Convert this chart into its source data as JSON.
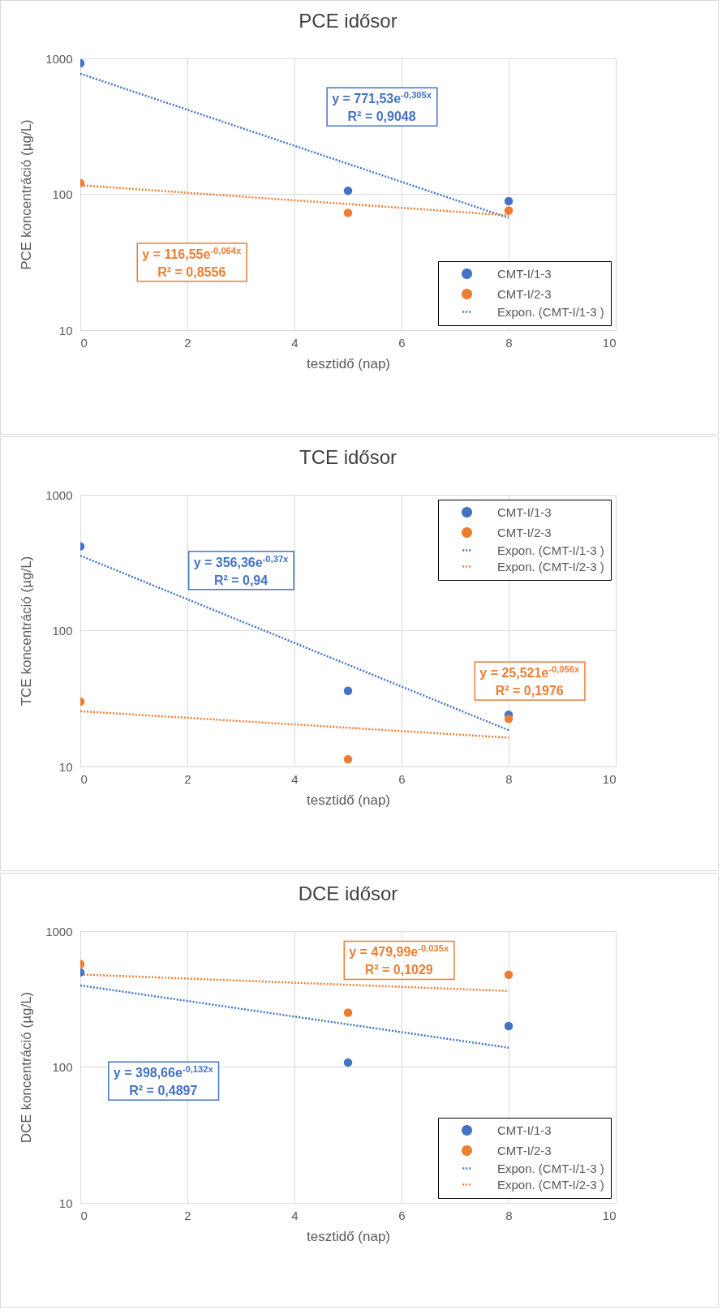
{
  "chart_data": [
    {
      "type": "scatter",
      "title": "PCE idősor",
      "xlabel": "tesztidő (nap)",
      "ylabel": "PCE koncentráció (µg/L)",
      "log": "y",
      "xlim": [
        0,
        10
      ],
      "xticks": [
        0,
        2,
        4,
        6,
        8,
        10
      ],
      "ylim": [
        10,
        1000
      ],
      "yticks": [
        10,
        100,
        1000
      ],
      "grid": true,
      "legend": "bottom right",
      "series": [
        {
          "name": "CMT-I/1-3",
          "marker": "circle",
          "color": "#4472c4",
          "x": [
            0,
            5,
            8
          ],
          "values": [
            920,
            106,
            89
          ]
        },
        {
          "name": "CMT-I/2-3",
          "marker": "circle",
          "color": "#ed7d31",
          "x": [
            0,
            5,
            8
          ],
          "values": [
            121,
            73,
            76
          ]
        },
        {
          "name": "Expon. (CMT-I/1-3 )",
          "type": "line",
          "marker": "none",
          "line_style": "dotted",
          "color": "#4472c4",
          "x": [
            0,
            8
          ],
          "values": [
            771.53,
            67
          ]
        },
        {
          "type": "line",
          "marker": "none",
          "line_style": "dotted",
          "color": "#ed7d31",
          "x": [
            0,
            8
          ],
          "values": [
            116.55,
            69.9
          ]
        }
      ],
      "annotations": [
        "y = 771,53e$^{-0,305x}$\nR² = 0,9048",
        "y = 116,55e$^{-0,064x}$\nR² = 0,8556"
      ]
    },
    {
      "type": "scatter",
      "title": "TCE idősor",
      "xlabel": "tesztidő (nap)",
      "ylabel": "TCE koncentráció (µg/L)",
      "log": "y",
      "xlim": [
        0,
        10
      ],
      "xticks": [
        0,
        2,
        4,
        6,
        8,
        10
      ],
      "ylim": [
        10,
        1000
      ],
      "yticks": [
        10,
        100,
        1000
      ],
      "grid": true,
      "legend": "top right",
      "series": [
        {
          "name": "CMT-I/1-3",
          "marker": "circle",
          "color": "#4472c4",
          "x": [
            0,
            5,
            8
          ],
          "values": [
            417,
            36,
            24
          ]
        },
        {
          "name": "CMT-I/2-3",
          "marker": "circle",
          "color": "#ed7d31",
          "x": [
            0,
            5,
            8
          ],
          "values": [
            30,
            11.3,
            22.4
          ]
        },
        {
          "name": "Expon. (CMT-I/1-3 )",
          "type": "line",
          "marker": "none",
          "line_style": "dotted",
          "color": "#4472c4",
          "x": [
            0,
            8
          ],
          "values": [
            356.36,
            18.5
          ]
        },
        {
          "name": "Expon. (CMT-I/2-3 )",
          "type": "line",
          "marker": "none",
          "line_style": "dotted",
          "color": "#ed7d31",
          "x": [
            0,
            8
          ],
          "values": [
            25.521,
            16.3
          ]
        }
      ],
      "annotations": [
        "y = 356,36e$^{-0,37x}$\nR² = 0,94",
        "y = 25,521e$^{-0,056x}$\nR² = 0,1976"
      ]
    },
    {
      "type": "scatter",
      "title": "DCE idősor",
      "xlabel": "tesztidő (nap)",
      "ylabel": "DCE koncentráció (µg/L)",
      "log": "y",
      "xlim": [
        0,
        10
      ],
      "xticks": [
        0,
        2,
        4,
        6,
        8,
        10
      ],
      "ylim": [
        10,
        1000
      ],
      "yticks": [
        10,
        100,
        1000
      ],
      "grid": true,
      "legend": "bottom right",
      "series": [
        {
          "name": "CMT-I/1-3",
          "marker": "circle",
          "color": "#4472c4",
          "x": [
            0,
            5,
            8
          ],
          "values": [
            497,
            108,
            200
          ]
        },
        {
          "name": "CMT-I/2-3",
          "marker": "circle",
          "color": "#ed7d31",
          "x": [
            0,
            5,
            8
          ],
          "values": [
            573,
            251,
            478
          ]
        },
        {
          "name": "Expon. (CMT-I/1-3 )",
          "type": "line",
          "marker": "none",
          "line_style": "dotted",
          "color": "#4472c4",
          "x": [
            0,
            8
          ],
          "values": [
            398.66,
            138.7
          ]
        },
        {
          "name": "Expon. (CMT-I/2-3 )",
          "type": "line",
          "marker": "none",
          "line_style": "dotted",
          "color": "#ed7d31",
          "x": [
            0,
            8
          ],
          "values": [
            479.99,
            362.8
          ]
        }
      ],
      "annotations": [
        "y = 398,66e$^{-0,132x}$\nR² = 0,4897",
        "y = 479,99e$^{-0,035x}$\nR² = 0,1029"
      ]
    }
  ]
}
